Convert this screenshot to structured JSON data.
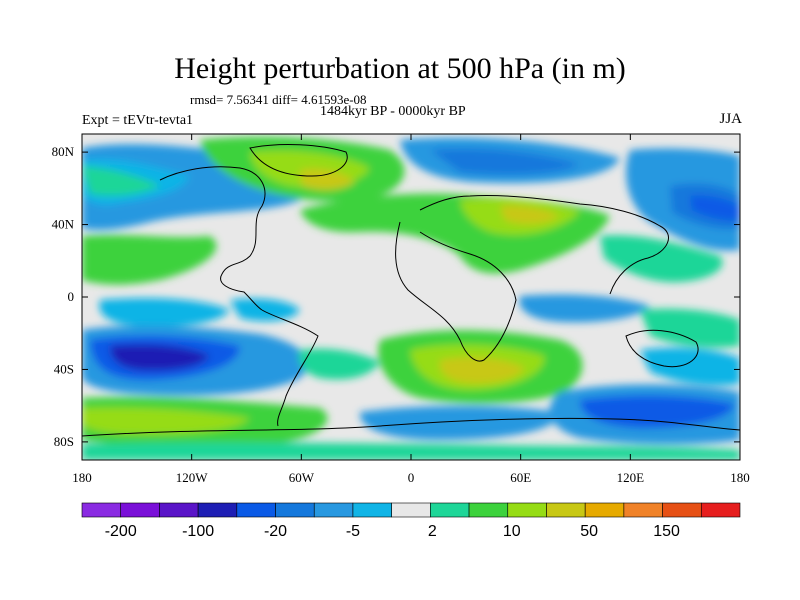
{
  "title": "Height perturbation at 500 hPa (in m)",
  "stats_line": "rmsd= 7.56341 diff= 4.61593e-08",
  "period_line": "1484kyr BP - 0000kyr BP",
  "experiment": "Expt = tEVtr-tevta1",
  "season": "JJA",
  "map": {
    "lon_range": [
      -180,
      180
    ],
    "lat_range": [
      -90,
      90
    ],
    "lon_ticks": [
      {
        "value": -180,
        "label": "180"
      },
      {
        "value": -120,
        "label": "120W"
      },
      {
        "value": -60,
        "label": "60W"
      },
      {
        "value": 0,
        "label": "0"
      },
      {
        "value": 60,
        "label": "60E"
      },
      {
        "value": 120,
        "label": "120E"
      },
      {
        "value": 180,
        "label": "180"
      }
    ],
    "lat_ticks": [
      {
        "value": 80,
        "label": "80N"
      },
      {
        "value": 40,
        "label": "40N"
      },
      {
        "value": 0,
        "label": "0"
      },
      {
        "value": -40,
        "label": "40S"
      },
      {
        "value": -80,
        "label": "80S"
      }
    ]
  },
  "colorbar": {
    "colors": [
      "#8a2be2",
      "#7a10d8",
      "#5a14c8",
      "#1e1eb4",
      "#0a5ae6",
      "#1478dc",
      "#2898e0",
      "#10b4e6",
      "#e8e8e8",
      "#1ed698",
      "#3cd23c",
      "#96dc14",
      "#c8c814",
      "#e6aa00",
      "#f08228",
      "#e65014",
      "#e61e1e"
    ],
    "labels": [
      {
        "index": 1,
        "label": "-200"
      },
      {
        "index": 3,
        "label": "-100"
      },
      {
        "index": 5,
        "label": "-20"
      },
      {
        "index": 7,
        "label": "-5"
      },
      {
        "index": 9,
        "label": "2"
      },
      {
        "index": 11,
        "label": "10"
      },
      {
        "index": 13,
        "label": "50"
      },
      {
        "index": 15,
        "label": "150"
      }
    ]
  }
}
